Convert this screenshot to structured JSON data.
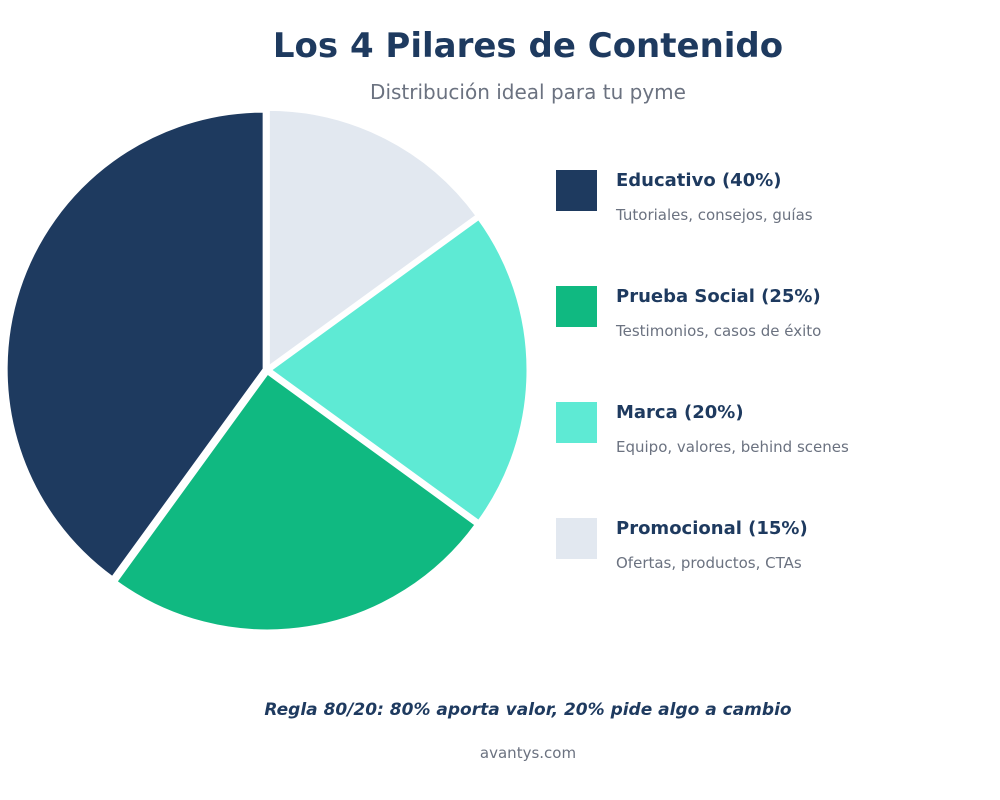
{
  "chart_data": {
    "type": "pie",
    "title": "Los 4 Pilares de Contenido",
    "subtitle": "Distribución ideal para tu pyme",
    "slices": [
      {
        "label": "Educativo (40%)",
        "value": 40,
        "description": "Tutoriales, consejos, guías",
        "color": "#1e3a5f"
      },
      {
        "label": "Prueba Social (25%)",
        "value": 25,
        "description": "Testimonios, casos de éxito",
        "color": "#10b981"
      },
      {
        "label": "Marca (20%)",
        "value": 20,
        "description": "Equipo, valores, behind scenes",
        "color": "#5eead4"
      },
      {
        "label": "Promocional (15%)",
        "value": 15,
        "description": "Ofertas, productos, CTAs",
        "color": "#e2e8f0"
      }
    ],
    "legend_position": "right",
    "annotation": "Regla 80/20: 80% aporta valor, 20% pide algo a cambio"
  },
  "footer": {
    "source": "avantys.com"
  }
}
